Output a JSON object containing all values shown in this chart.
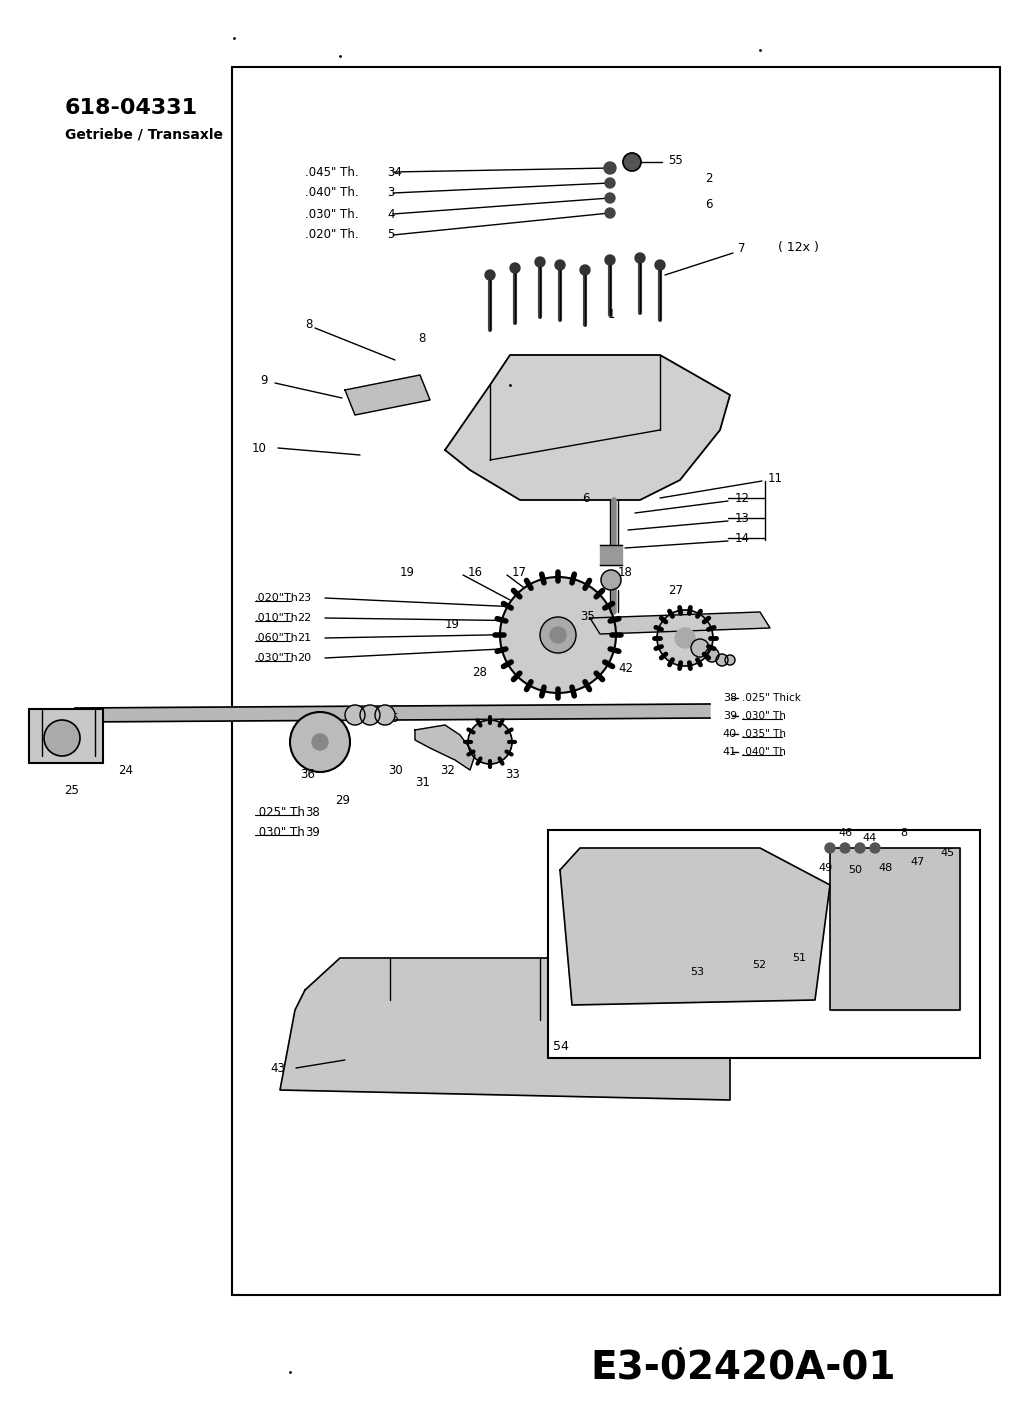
{
  "bg_color": "#ffffff",
  "fig_width": 10.32,
  "fig_height": 14.21,
  "title_code": "618-04331",
  "subtitle": "Getriebe / Transaxle",
  "bottom_code": "E3-02420A-01",
  "thickness_labels_top": [
    [
      ".045\" Th.",
      "34"
    ],
    [
      ".040\" Th.",
      "3"
    ],
    [
      ".030\" Th.",
      "4"
    ],
    [
      ".020\" Th.",
      "5"
    ]
  ],
  "thickness_labels_mid": [
    [
      ".020\"Th",
      "23"
    ],
    [
      ".010\"Th",
      "22"
    ],
    [
      ".060\"Th",
      "21"
    ],
    [
      ".030\"Th",
      "20"
    ]
  ],
  "thickness_labels_bot": [
    [
      ".025\" Th",
      "38"
    ],
    [
      ".030\" Th",
      "39"
    ]
  ],
  "thickness_labels_right": [
    [
      ".025\" Thick",
      "38"
    ],
    [
      ".030\" Th",
      "39"
    ],
    [
      ".035\" Th",
      "40"
    ],
    [
      ".040\" Th",
      "41"
    ]
  ],
  "note_12x": "( 12x )",
  "text_color": "#000000",
  "line_color": "#000000"
}
